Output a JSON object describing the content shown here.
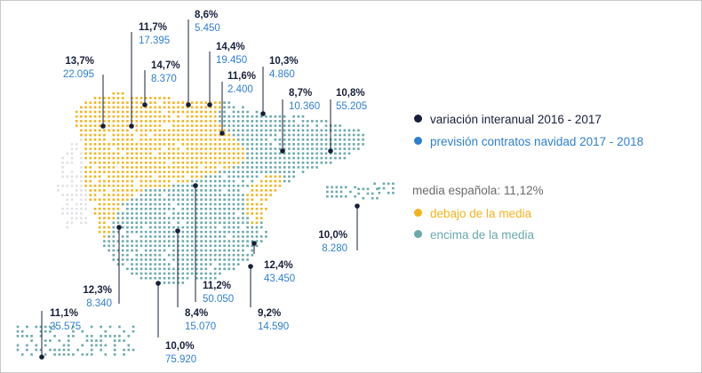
{
  "colors": {
    "below": "#f2b41c",
    "above": "#6aa9ab",
    "pct_text": "#17203a",
    "count_text": "#2f7fd1",
    "marker": "#17203a",
    "neutral_dots": "#dfe2e6"
  },
  "legend": {
    "items": [
      {
        "label": "variación interanual 2016 - 2017",
        "color": "#17203a"
      },
      {
        "label": "previsión contratos navidad 2017 - 2018",
        "color": "#2f7fd1"
      }
    ],
    "average_label": "media española: 11,12%",
    "categories": [
      {
        "label": "debajo de la media",
        "color": "#f2b41c"
      },
      {
        "label": "encima de la media",
        "color": "#6aa9ab"
      }
    ]
  },
  "regions": [
    {
      "pct": "13,7%",
      "count": "22.095",
      "above": true
    },
    {
      "pct": "11,7%",
      "count": "17.395",
      "above": true
    },
    {
      "pct": "14,7%",
      "count": "8.370",
      "above": true
    },
    {
      "pct": "8,6%",
      "count": "5.450",
      "above": false
    },
    {
      "pct": "14,4%",
      "count": "19.450",
      "above": true
    },
    {
      "pct": "11,6%",
      "count": "2.400",
      "above": true
    },
    {
      "pct": "10,3%",
      "count": "4.860",
      "above": false
    },
    {
      "pct": "8,7%",
      "count": "10.360",
      "above": false
    },
    {
      "pct": "10,8%",
      "count": "55.205",
      "above": false
    },
    {
      "pct": "10,0%",
      "count": "8.280",
      "above": false
    },
    {
      "pct": "12,4%",
      "count": "43.450",
      "above": true
    },
    {
      "pct": "12,3%",
      "count": "8.340",
      "above": true
    },
    {
      "pct": "11,2%",
      "count": "50.050",
      "above": true
    },
    {
      "pct": "8,4%",
      "count": "15.070",
      "above": false
    },
    {
      "pct": "9,2%",
      "count": "14.590",
      "above": false
    },
    {
      "pct": "10,0%",
      "count": "75.920",
      "above": false
    },
    {
      "pct": "11,1%",
      "count": "25.575",
      "above": false
    }
  ]
}
